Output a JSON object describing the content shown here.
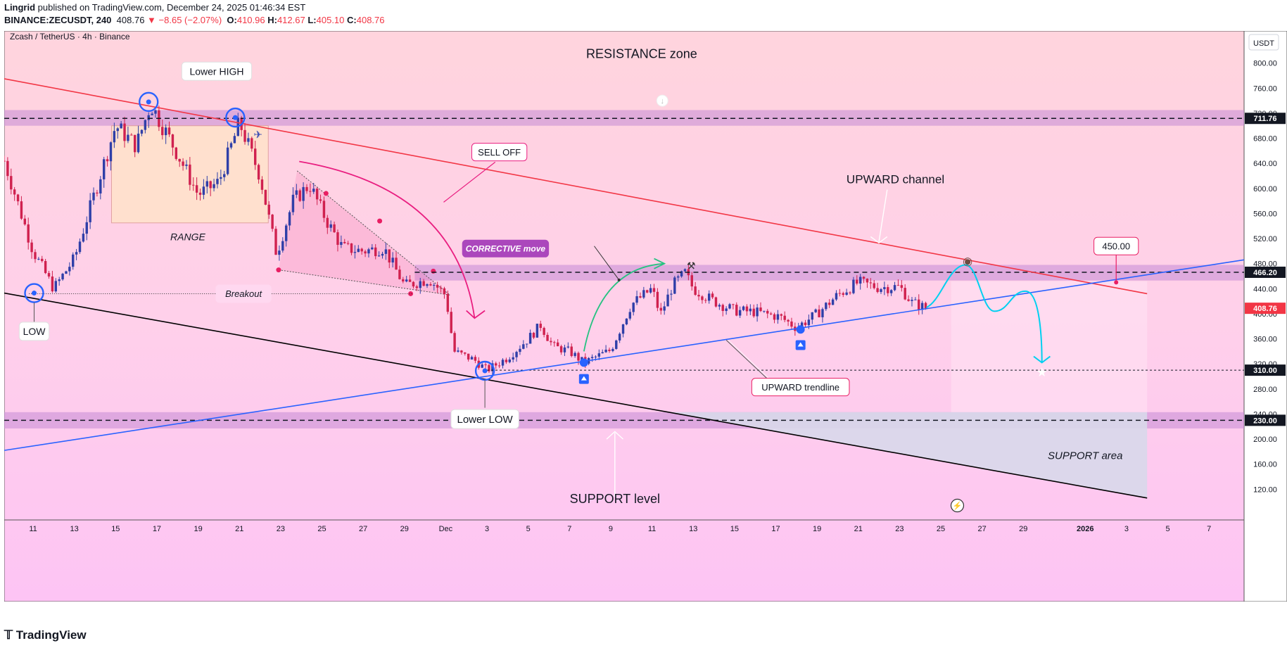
{
  "header": {
    "author": "Lingrid",
    "published_text": "published on TradingView.com, December 24, 2025 01:46:34 EST",
    "symbol": "BINANCE:ZECUSDT, 240",
    "last": "408.76",
    "change": "▼ −8.65 (−2.07%)",
    "o_label": "O:",
    "o": "410.96",
    "h_label": "H:",
    "h": "412.67",
    "l_label": "L:",
    "l": "405.10",
    "c_label": "C:",
    "c": "408.76"
  },
  "chart": {
    "pair_label": "Zcash / TetherUS · 4h · Binance",
    "currency": "USDT"
  },
  "footer": {
    "brand": "TradingView"
  },
  "colors": {
    "bull": "#089981",
    "bear": "#f23645",
    "channel_top": "#f23645",
    "channel_bottom": "#000000",
    "trendline": "#2962ff",
    "projection": "#00d0f0",
    "zone": "#c48ad6",
    "arrow_green": "#26c281",
    "arrow_pink": "#e91e80"
  },
  "chart_data": {
    "type": "candlestick",
    "title": "Zcash / TetherUS · 4h · Binance",
    "ylim": [
      80,
      840
    ],
    "y_ticks": [
      120,
      160,
      200,
      240,
      280,
      320,
      360,
      400,
      440,
      480,
      520,
      560,
      600,
      640,
      680,
      720,
      760,
      800
    ],
    "y_tick_labels": [
      "120.00",
      "160.00",
      "200.00",
      "240.00",
      "280.00",
      "320.00",
      "360.00",
      "400.00",
      "440.00",
      "480.00",
      "520.00",
      "560.00",
      "600.00",
      "640.00",
      "680.00",
      "720.00",
      "760.00",
      "800.00"
    ],
    "x_tick_labels": [
      "11",
      "13",
      "15",
      "17",
      "19",
      "21",
      "23",
      "25",
      "27",
      "29",
      "Dec",
      "3",
      "5",
      "7",
      "9",
      "11",
      "13",
      "15",
      "17",
      "19",
      "21",
      "23",
      "25",
      "27",
      "29",
      "2026",
      "3",
      "5",
      "7"
    ],
    "x_tick_days": [
      0,
      2,
      4,
      6,
      8,
      10,
      12,
      14,
      16,
      18,
      20,
      22,
      24,
      26,
      28,
      30,
      32,
      34,
      36,
      38,
      40,
      42,
      44,
      46,
      48,
      51,
      53,
      55,
      57
    ],
    "x_start_day": -1.4,
    "x_end_day": 58.7,
    "bars_per_day": 6,
    "price_markers": [
      {
        "value": 711.76,
        "label": "711.76",
        "color": "#131722"
      },
      {
        "value": 466.2,
        "label": "466.20",
        "color": "#131722"
      },
      {
        "value": 408.76,
        "label": "408.76",
        "color": "#f23645"
      },
      {
        "value": 310.0,
        "label": "310.00",
        "color": "#131722"
      },
      {
        "value": 230.0,
        "label": "230.00",
        "color": "#131722"
      }
    ],
    "zones": [
      {
        "name": "resistance-zone",
        "from": 700,
        "to": 725
      },
      {
        "name": "mid-zone",
        "from": 453,
        "to": 478
      },
      {
        "name": "support-zone",
        "from": 217,
        "to": 243
      }
    ],
    "anchors": [
      {
        "day": -1.4,
        "price": 644
      },
      {
        "day": 0,
        "price": 500
      },
      {
        "day": 1,
        "price": 440
      },
      {
        "day": 2,
        "price": 488
      },
      {
        "day": 4,
        "price": 700
      },
      {
        "day": 5,
        "price": 668
      },
      {
        "day": 5.7,
        "price": 735
      },
      {
        "day": 7,
        "price": 655
      },
      {
        "day": 8,
        "price": 590
      },
      {
        "day": 9,
        "price": 610
      },
      {
        "day": 10,
        "price": 705
      },
      {
        "day": 11,
        "price": 620
      },
      {
        "day": 11.8,
        "price": 495
      },
      {
        "day": 12.6,
        "price": 580
      },
      {
        "day": 13.4,
        "price": 606
      },
      {
        "day": 14.2,
        "price": 550
      },
      {
        "day": 15,
        "price": 505
      },
      {
        "day": 16,
        "price": 500
      },
      {
        "day": 17,
        "price": 505
      },
      {
        "day": 18,
        "price": 445
      },
      {
        "day": 19.2,
        "price": 455
      },
      {
        "day": 20,
        "price": 430
      },
      {
        "day": 20.4,
        "price": 340
      },
      {
        "day": 21.4,
        "price": 326
      },
      {
        "day": 22,
        "price": 310
      },
      {
        "day": 23,
        "price": 330
      },
      {
        "day": 24,
        "price": 360
      },
      {
        "day": 24.6,
        "price": 382
      },
      {
        "day": 25.2,
        "price": 348
      },
      {
        "day": 26,
        "price": 340
      },
      {
        "day": 26.7,
        "price": 322
      },
      {
        "day": 28,
        "price": 342
      },
      {
        "day": 29,
        "price": 415
      },
      {
        "day": 30,
        "price": 440
      },
      {
        "day": 30.4,
        "price": 398
      },
      {
        "day": 31,
        "price": 445
      },
      {
        "day": 31.6,
        "price": 465
      },
      {
        "day": 32,
        "price": 440
      },
      {
        "day": 33,
        "price": 420
      },
      {
        "day": 34,
        "price": 405
      },
      {
        "day": 35,
        "price": 403
      },
      {
        "day": 36.2,
        "price": 395
      },
      {
        "day": 37,
        "price": 378
      },
      {
        "day": 38,
        "price": 400
      },
      {
        "day": 39,
        "price": 430
      },
      {
        "day": 40,
        "price": 450
      },
      {
        "day": 41,
        "price": 442
      },
      {
        "day": 42,
        "price": 443
      },
      {
        "day": 42.6,
        "price": 418
      },
      {
        "day": 43.3,
        "price": 408.76
      }
    ],
    "drawings": {
      "channel_top": [
        {
          "day": -1.4,
          "price": 775
        },
        {
          "day": 54,
          "price": 432
        }
      ],
      "channel_bottom": [
        {
          "day": -1.4,
          "price": 433
        },
        {
          "day": 54,
          "price": 106
        }
      ],
      "upward_trendline": [
        {
          "day": -1.4,
          "price": 182
        },
        {
          "day": 58.7,
          "price": 486
        }
      ],
      "breakout_level": 432,
      "lower_low_level": 310,
      "target_price": 450.0
    },
    "annotations": [
      {
        "text": "RESISTANCE zone"
      },
      {
        "text": "Lower HIGH"
      },
      {
        "text": "RANGE"
      },
      {
        "text": "Breakout"
      },
      {
        "text": "LOW"
      },
      {
        "text": "SELL OFF"
      },
      {
        "text": "CORRECTIVE move"
      },
      {
        "text": "UPWARD channel"
      },
      {
        "text": "450.00"
      },
      {
        "text": "UPWARD trendline"
      },
      {
        "text": "Lower LOW"
      },
      {
        "text": "SUPPORT level"
      },
      {
        "text": "SUPPORT area"
      }
    ]
  }
}
